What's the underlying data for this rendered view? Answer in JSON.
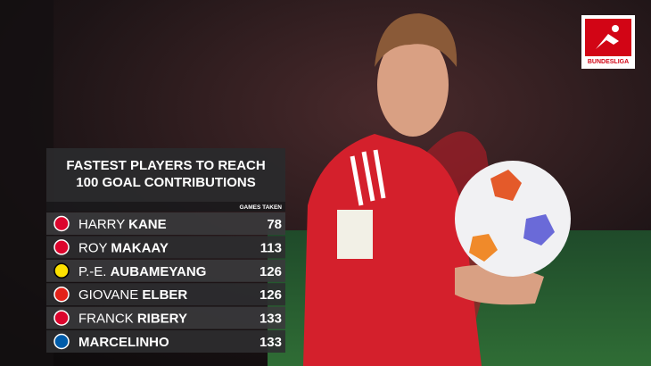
{
  "graphic": {
    "logo": "BUNDESLIGA",
    "title": [
      "FASTEST PLAYERS TO REACH",
      "100 GOAL CONTRIBUTIONS"
    ],
    "column_header": "GAMES TAKEN",
    "rows": [
      {
        "first": "HARRY",
        "last": "KANE",
        "games": 78,
        "club": "bayern"
      },
      {
        "first": "ROY",
        "last": "MAKAAY",
        "games": 113,
        "club": "bayern"
      },
      {
        "first": "P.-E.",
        "last": "AUBAMEYANG",
        "games": 126,
        "club": "dortmund"
      },
      {
        "first": "GIOVANE",
        "last": "ELBER",
        "games": 126,
        "club": "stuttgart"
      },
      {
        "first": "FRANCK",
        "last": "RIBERY",
        "games": 133,
        "club": "bayern"
      },
      {
        "last": "MARCELINHO",
        "games": 133,
        "club": "hertha"
      }
    ]
  }
}
